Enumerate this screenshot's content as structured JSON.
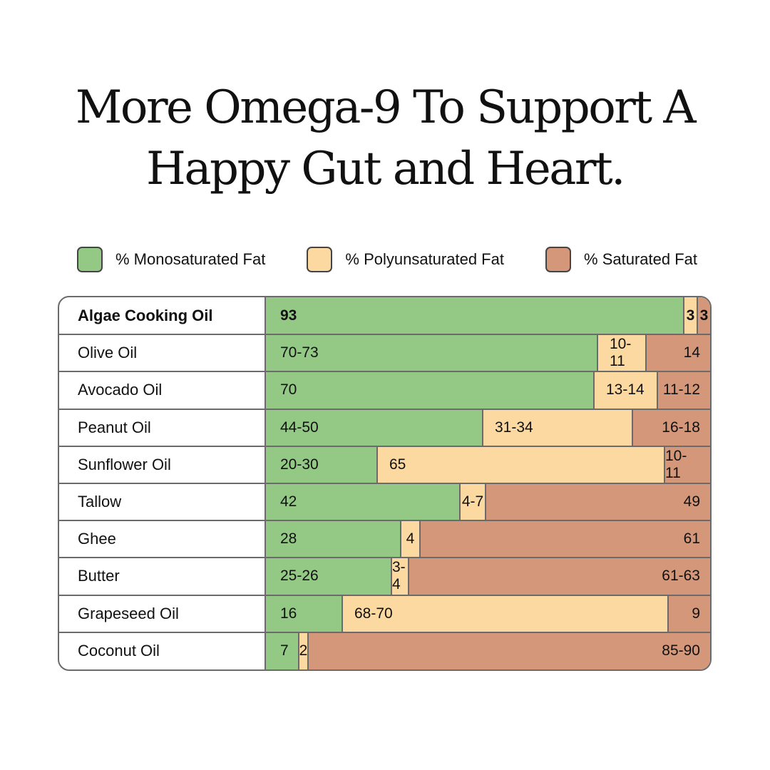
{
  "title_lines": [
    "More Omega-9 To Support A",
    "Happy Gut and Heart."
  ],
  "colors": {
    "mono": "#93c985",
    "poly": "#fbd9a0",
    "sat": "#d4977a"
  },
  "chart_data": {
    "type": "bar",
    "orientation": "horizontal",
    "stacked": true,
    "normalized": true,
    "title": "More Omega-9 To Support A Happy Gut and Heart.",
    "legend": {
      "placement": "top",
      "entries": [
        "% Monosaturated Fat",
        "% Polyunsaturated Fat",
        "% Saturated Fat"
      ]
    },
    "grid": false,
    "series": [
      {
        "name": "% Monosaturated Fat",
        "color": "#93c985"
      },
      {
        "name": "% Polyunsaturated Fat",
        "color": "#fbd9a0"
      },
      {
        "name": "% Saturated Fat",
        "color": "#d4977a"
      }
    ],
    "rows": [
      {
        "name": "Algae Cooking Oil",
        "bold": true,
        "mono": {
          "label": "93",
          "value": 93
        },
        "poly": {
          "label": "3",
          "value": 3
        },
        "sat": {
          "label": "3",
          "value": 3
        }
      },
      {
        "name": "Olive Oil",
        "mono": {
          "label": "70-73",
          "value": 71.5
        },
        "poly": {
          "label": "10-11",
          "value": 10.5
        },
        "sat": {
          "label": "14",
          "value": 14
        }
      },
      {
        "name": "Avocado Oil",
        "mono": {
          "label": "70",
          "value": 70
        },
        "poly": {
          "label": "13-14",
          "value": 13.5
        },
        "sat": {
          "label": "11-12",
          "value": 11.5
        }
      },
      {
        "name": "Peanut Oil",
        "mono": {
          "label": "44-50",
          "value": 47
        },
        "poly": {
          "label": "31-34",
          "value": 32.5
        },
        "sat": {
          "label": "16-18",
          "value": 17
        }
      },
      {
        "name": "Sunflower Oil",
        "mono": {
          "label": "20-30",
          "value": 25
        },
        "poly": {
          "label": "65",
          "value": 65
        },
        "sat": {
          "label": "10-11",
          "value": 10.5
        }
      },
      {
        "name": "Tallow",
        "mono": {
          "label": "42",
          "value": 42
        },
        "poly": {
          "label": "4-7",
          "value": 5.5
        },
        "sat": {
          "label": "49",
          "value": 49
        }
      },
      {
        "name": "Ghee",
        "mono": {
          "label": "28",
          "value": 28
        },
        "poly": {
          "label": "4",
          "value": 4
        },
        "sat": {
          "label": "61",
          "value": 61
        }
      },
      {
        "name": "Butter",
        "mono": {
          "label": "25-26",
          "value": 25.5
        },
        "poly": {
          "label": "3-4",
          "value": 3.5
        },
        "sat": {
          "label": "61-63",
          "value": 62
        }
      },
      {
        "name": "Grapeseed Oil",
        "mono": {
          "label": "16",
          "value": 16
        },
        "poly": {
          "label": "68-70",
          "value": 69
        },
        "sat": {
          "label": "9",
          "value": 9
        }
      },
      {
        "name": "Coconut Oil",
        "mono": {
          "label": "7",
          "value": 7
        },
        "poly": {
          "label": "2",
          "value": 2
        },
        "sat": {
          "label": "85-90",
          "value": 87.5
        }
      }
    ]
  }
}
